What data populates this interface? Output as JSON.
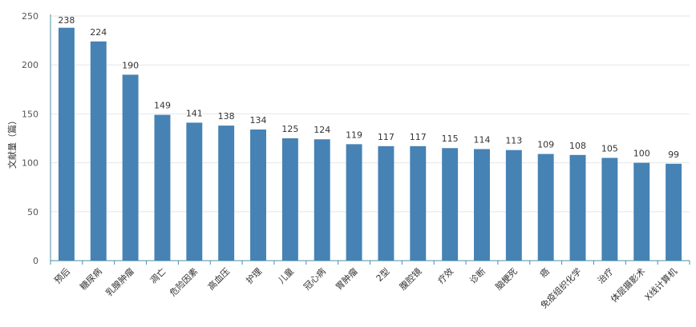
{
  "chart_data": {
    "type": "bar",
    "ylabel": "文献量（篇）",
    "xlabel": "",
    "title": "",
    "ylim": [
      0,
      250
    ],
    "yticks": [
      0,
      50,
      100,
      150,
      200,
      250
    ],
    "grid": true,
    "bar_color": "#4682b4",
    "categories": [
      "预后",
      "糖尿病",
      "乳腺肿瘤",
      "凋亡",
      "危险因素",
      "高血压",
      "护理",
      "儿童",
      "冠心病",
      "胃肿瘤",
      "2型",
      "腹腔镜",
      "疗效",
      "诊断",
      "脑梗死",
      "癌",
      "免疫组织化学",
      "治疗",
      "体层摄影术",
      "X线计算机"
    ],
    "values": [
      238,
      224,
      190,
      149,
      141,
      138,
      134,
      125,
      124,
      119,
      117,
      117,
      115,
      114,
      113,
      109,
      108,
      105,
      100,
      99
    ]
  }
}
